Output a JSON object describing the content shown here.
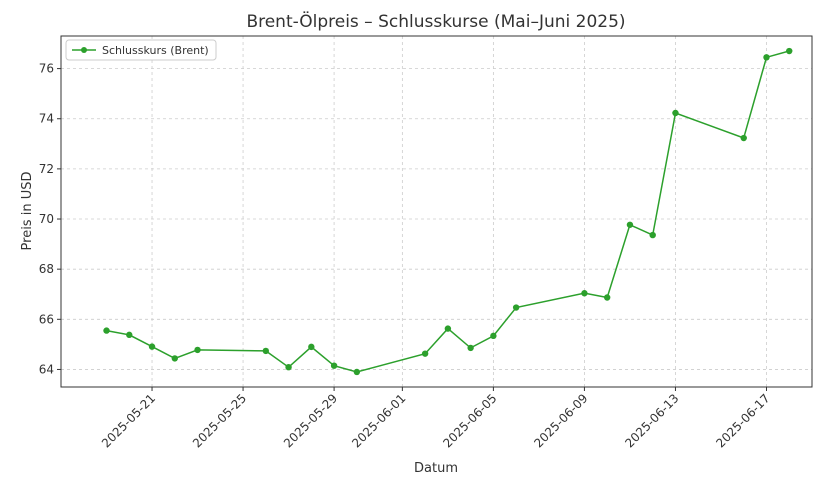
{
  "chart_data": {
    "type": "line",
    "title": "Brent-Ölpreis – Schlusskurse (Mai–Juni 2025)",
    "xlabel": "Datum",
    "ylabel": "Preis in USD",
    "xlim": [
      "2025-05-17",
      "2025-06-19"
    ],
    "ylim": [
      63.3,
      77.3
    ],
    "x_ticks": [
      "2025-05-21",
      "2025-05-25",
      "2025-05-29",
      "2025-06-01",
      "2025-06-05",
      "2025-06-09",
      "2025-06-13",
      "2025-06-17"
    ],
    "y_ticks": [
      64,
      66,
      68,
      70,
      72,
      74,
      76
    ],
    "grid": true,
    "legend_position": "top-left",
    "series": [
      {
        "name": "Schlusskurs (Brent)",
        "color": "#2ca02c",
        "points": [
          {
            "x": "2025-05-19",
            "y": 65.55
          },
          {
            "x": "2025-05-20",
            "y": 65.38
          },
          {
            "x": "2025-05-21",
            "y": 64.91
          },
          {
            "x": "2025-05-22",
            "y": 64.44
          },
          {
            "x": "2025-05-23",
            "y": 64.78
          },
          {
            "x": "2025-05-26",
            "y": 64.74
          },
          {
            "x": "2025-05-27",
            "y": 64.09
          },
          {
            "x": "2025-05-28",
            "y": 64.9
          },
          {
            "x": "2025-05-29",
            "y": 64.15
          },
          {
            "x": "2025-05-30",
            "y": 63.9
          },
          {
            "x": "2025-06-02",
            "y": 64.63
          },
          {
            "x": "2025-06-03",
            "y": 65.63
          },
          {
            "x": "2025-06-04",
            "y": 64.86
          },
          {
            "x": "2025-06-05",
            "y": 65.34
          },
          {
            "x": "2025-06-06",
            "y": 66.47
          },
          {
            "x": "2025-06-09",
            "y": 67.04
          },
          {
            "x": "2025-06-10",
            "y": 66.87
          },
          {
            "x": "2025-06-11",
            "y": 69.77
          },
          {
            "x": "2025-06-12",
            "y": 69.36
          },
          {
            "x": "2025-06-13",
            "y": 74.23
          },
          {
            "x": "2025-06-16",
            "y": 73.23
          },
          {
            "x": "2025-06-17",
            "y": 76.45
          },
          {
            "x": "2025-06-18",
            "y": 76.7
          }
        ]
      }
    ]
  }
}
